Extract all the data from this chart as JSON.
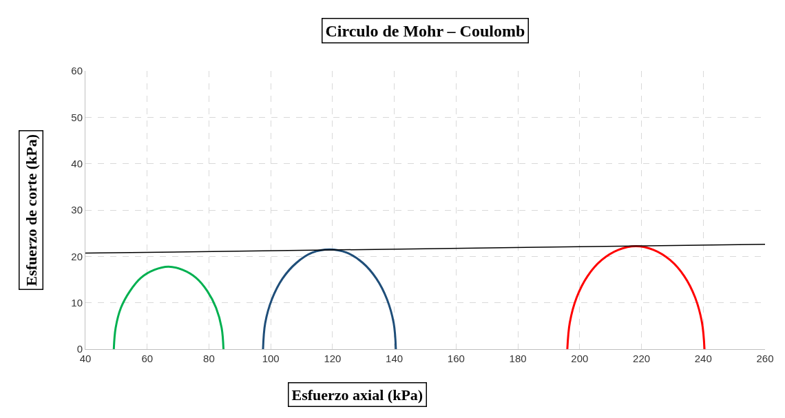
{
  "chart_data": {
    "type": "line",
    "title": "Circulo de Mohr – Coulomb",
    "xlabel": "Esfuerzo axial (kPa)",
    "ylabel": "Esfuerzo de corte (kPa)",
    "xlim": [
      40,
      260
    ],
    "xticks": [
      40,
      60,
      80,
      100,
      120,
      140,
      160,
      180,
      200,
      220,
      240,
      260
    ],
    "ylim": [
      0,
      60
    ],
    "yticks": [
      0,
      10,
      20,
      30,
      40,
      50,
      60
    ],
    "grid": true,
    "marker": "none",
    "line_style": "solid",
    "series": [
      {
        "color": "#00b050",
        "x": [
          49.2,
          49.8,
          51.5,
          54.4,
          58.0,
          62.3,
          66.9,
          71.5,
          75.8,
          79.5,
          82.3,
          84.1,
          84.7
        ],
        "values": [
          0,
          4.6,
          8.9,
          12.5,
          15.4,
          17.1,
          17.8,
          17.1,
          15.4,
          12.5,
          8.9,
          4.6,
          0
        ]
      },
      {
        "color": "#1f4e79",
        "x": [
          97.5,
          98.2,
          100.4,
          103.8,
          108.3,
          113.4,
          119.0,
          124.6,
          129.8,
          134.2,
          137.6,
          139.8,
          140.5
        ],
        "values": [
          0,
          5.6,
          10.8,
          15.2,
          18.6,
          20.8,
          21.5,
          20.8,
          18.6,
          15.2,
          10.8,
          5.6,
          0
        ]
      },
      {
        "color": "#ff0000",
        "x": [
          196.0,
          196.8,
          199.0,
          202.5,
          207.1,
          212.5,
          218.2,
          223.9,
          229.3,
          233.9,
          237.4,
          239.6,
          240.4
        ],
        "values": [
          0,
          5.7,
          11.1,
          15.7,
          19.2,
          21.4,
          22.2,
          21.4,
          19.2,
          15.7,
          11.1,
          5.7,
          0
        ]
      },
      {
        "color": "#000000",
        "x": [
          40,
          260
        ],
        "values": [
          20.7,
          22.6
        ]
      }
    ]
  }
}
